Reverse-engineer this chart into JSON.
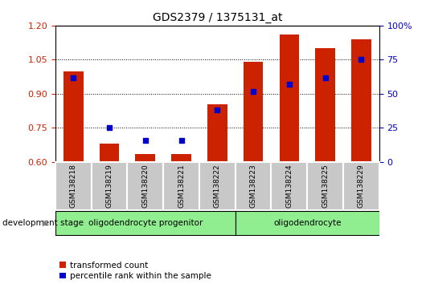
{
  "title": "GDS2379 / 1375131_at",
  "samples": [
    "GSM138218",
    "GSM138219",
    "GSM138220",
    "GSM138221",
    "GSM138222",
    "GSM138223",
    "GSM138224",
    "GSM138225",
    "GSM138229"
  ],
  "red_values": [
    1.0,
    0.68,
    0.635,
    0.635,
    0.855,
    1.04,
    1.16,
    1.1,
    1.14
  ],
  "blue_values_left": [
    0.97,
    0.75,
    0.695,
    0.695,
    0.83,
    0.91,
    0.94,
    0.97,
    1.05
  ],
  "ylim_left": [
    0.6,
    1.2
  ],
  "ylim_right": [
    0,
    100
  ],
  "yticks_left": [
    0.6,
    0.75,
    0.9,
    1.05,
    1.2
  ],
  "yticks_right": [
    0,
    25,
    50,
    75,
    100
  ],
  "ytick_labels_right": [
    "0",
    "25",
    "50",
    "75",
    "100%"
  ],
  "bar_color": "#cc2200",
  "dot_color": "#0000cc",
  "bar_width": 0.55,
  "left_tick_color": "#cc2200",
  "right_tick_color": "#0000cc",
  "legend_red_label": "transformed count",
  "legend_blue_label": "percentile rank within the sample",
  "dev_stage_label": "development stage",
  "group1_label": "oligodendrocyte progenitor",
  "group2_label": "oligodendrocyte",
  "group_color": "#90EE90",
  "tick_bg_color": "#c8c8c8"
}
